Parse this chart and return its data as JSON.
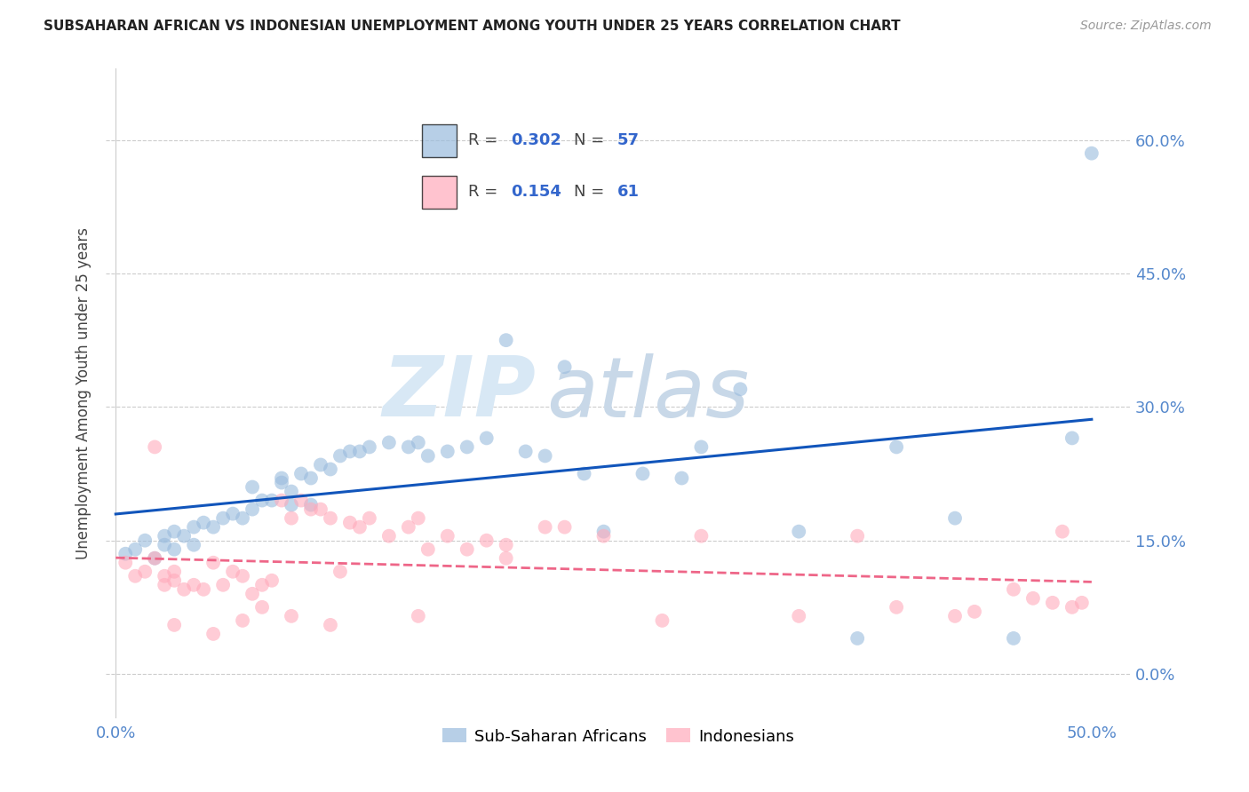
{
  "title": "SUBSAHARAN AFRICAN VS INDONESIAN UNEMPLOYMENT AMONG YOUTH UNDER 25 YEARS CORRELATION CHART",
  "source": "Source: ZipAtlas.com",
  "ylabel": "Unemployment Among Youth under 25 years",
  "xlabel_ticks": [
    "0.0%",
    "50.0%"
  ],
  "xlabel_vals": [
    0.0,
    0.5
  ],
  "ylabel_ticks_left": [],
  "ylabel_ticks_right": [
    "60.0%",
    "45.0%",
    "30.0%",
    "15.0%"
  ],
  "ylabel_vals": [
    0.0,
    0.15,
    0.3,
    0.45,
    0.6
  ],
  "xlim": [
    -0.005,
    0.52
  ],
  "ylim": [
    -0.05,
    0.68
  ],
  "legend_entries": [
    "Sub-Saharan Africans",
    "Indonesians"
  ],
  "legend_R": [
    "0.302",
    "0.154"
  ],
  "legend_N": [
    "57",
    "61"
  ],
  "blue_color": "#99BBDD",
  "pink_color": "#FFAABB",
  "blue_line_color": "#1155BB",
  "pink_line_color": "#EE6688",
  "watermark_zip": "ZIP",
  "watermark_atlas": "atlas",
  "blue_scatter_x": [
    0.005,
    0.01,
    0.015,
    0.02,
    0.025,
    0.025,
    0.03,
    0.03,
    0.035,
    0.04,
    0.04,
    0.045,
    0.05,
    0.055,
    0.06,
    0.065,
    0.07,
    0.07,
    0.075,
    0.08,
    0.085,
    0.085,
    0.09,
    0.09,
    0.095,
    0.1,
    0.1,
    0.105,
    0.11,
    0.115,
    0.12,
    0.125,
    0.13,
    0.14,
    0.15,
    0.155,
    0.16,
    0.17,
    0.18,
    0.19,
    0.2,
    0.21,
    0.22,
    0.23,
    0.24,
    0.25,
    0.27,
    0.29,
    0.3,
    0.32,
    0.35,
    0.38,
    0.4,
    0.43,
    0.46,
    0.49,
    0.5
  ],
  "blue_scatter_y": [
    0.135,
    0.14,
    0.15,
    0.13,
    0.145,
    0.155,
    0.14,
    0.16,
    0.155,
    0.145,
    0.165,
    0.17,
    0.165,
    0.175,
    0.18,
    0.175,
    0.185,
    0.21,
    0.195,
    0.195,
    0.22,
    0.215,
    0.205,
    0.19,
    0.225,
    0.22,
    0.19,
    0.235,
    0.23,
    0.245,
    0.25,
    0.25,
    0.255,
    0.26,
    0.255,
    0.26,
    0.245,
    0.25,
    0.255,
    0.265,
    0.375,
    0.25,
    0.245,
    0.345,
    0.225,
    0.16,
    0.225,
    0.22,
    0.255,
    0.32,
    0.16,
    0.04,
    0.255,
    0.175,
    0.04,
    0.265,
    0.585
  ],
  "pink_scatter_x": [
    0.005,
    0.01,
    0.015,
    0.02,
    0.025,
    0.025,
    0.03,
    0.03,
    0.035,
    0.04,
    0.045,
    0.05,
    0.055,
    0.06,
    0.065,
    0.07,
    0.075,
    0.08,
    0.085,
    0.09,
    0.095,
    0.1,
    0.105,
    0.11,
    0.115,
    0.12,
    0.125,
    0.13,
    0.14,
    0.15,
    0.155,
    0.16,
    0.17,
    0.18,
    0.19,
    0.2,
    0.22,
    0.23,
    0.25,
    0.28,
    0.3,
    0.35,
    0.38,
    0.4,
    0.43,
    0.44,
    0.46,
    0.47,
    0.48,
    0.485,
    0.49,
    0.495,
    0.02,
    0.03,
    0.05,
    0.065,
    0.075,
    0.09,
    0.11,
    0.155,
    0.2
  ],
  "pink_scatter_y": [
    0.125,
    0.11,
    0.115,
    0.13,
    0.1,
    0.11,
    0.105,
    0.115,
    0.095,
    0.1,
    0.095,
    0.125,
    0.1,
    0.115,
    0.11,
    0.09,
    0.1,
    0.105,
    0.195,
    0.175,
    0.195,
    0.185,
    0.185,
    0.175,
    0.115,
    0.17,
    0.165,
    0.175,
    0.155,
    0.165,
    0.175,
    0.14,
    0.155,
    0.14,
    0.15,
    0.145,
    0.165,
    0.165,
    0.155,
    0.06,
    0.155,
    0.065,
    0.155,
    0.075,
    0.065,
    0.07,
    0.095,
    0.085,
    0.08,
    0.16,
    0.075,
    0.08,
    0.255,
    0.055,
    0.045,
    0.06,
    0.075,
    0.065,
    0.055,
    0.065,
    0.13
  ]
}
